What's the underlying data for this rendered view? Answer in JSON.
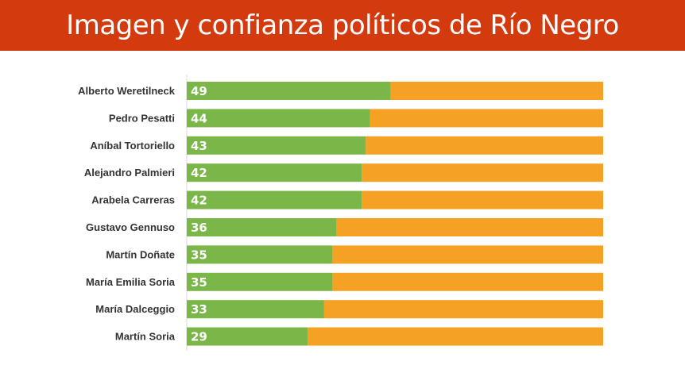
{
  "header": {
    "title": "Imagen y confianza políticos de Río Negro"
  },
  "colors": {
    "header_bg": "#d33a0e",
    "positive": "#7ab648",
    "negative": "#f5a124"
  },
  "chart_data": {
    "type": "bar",
    "orientation": "horizontal",
    "stacked": true,
    "title": "",
    "xlabel": "",
    "ylabel": "",
    "xlim": [
      0,
      100
    ],
    "grid": false,
    "categories": [
      "Alberto Weretilneck",
      "Pedro Pesatti",
      "Aníbal Tortoriello",
      "Alejandro Palmieri",
      "Arabela Carreras",
      "Gustavo Gennuso",
      "Martín Doñate",
      "María Emilia Soria",
      "María Dalceggio",
      "Martín Soria"
    ],
    "series": [
      {
        "color": "#7ab648",
        "values": [
          49,
          44,
          43,
          42,
          42,
          36,
          35,
          35,
          33,
          29
        ],
        "show_labels": true
      },
      {
        "color": "#f5a124",
        "values": [
          51,
          56,
          57,
          58,
          58,
          64,
          65,
          65,
          67,
          71
        ],
        "show_labels": false
      }
    ]
  }
}
